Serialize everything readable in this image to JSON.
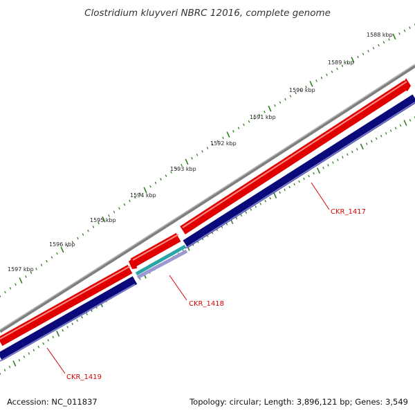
{
  "title": "Clostridium kluyveri NBRC 12016, complete genome",
  "footer": {
    "accession": "Accession: NC_011837",
    "summary": "Topology: circular; Length: 3,896,121 bp; Genes: 3,549"
  },
  "scale": {
    "labels": [
      "1588 kbp",
      "1589 kbp",
      "1590 kbp",
      "1591 kbp",
      "1592 kbp",
      "1593 kbp",
      "1594 kbp",
      "1595 kbp",
      "1596 kbp",
      "1597 kbp"
    ]
  },
  "genes": [
    {
      "label": "CKR_1417"
    },
    {
      "label": "CKR_1418"
    },
    {
      "label": "CKR_1419"
    }
  ],
  "colors": {
    "forward_cds": "#e00000",
    "reverse_cds": "#0a0a7a",
    "backbone": "#7f7f7f",
    "ticks": "#2e7d20",
    "gene_label": "#d40000",
    "rna": "#2aa5a5"
  }
}
